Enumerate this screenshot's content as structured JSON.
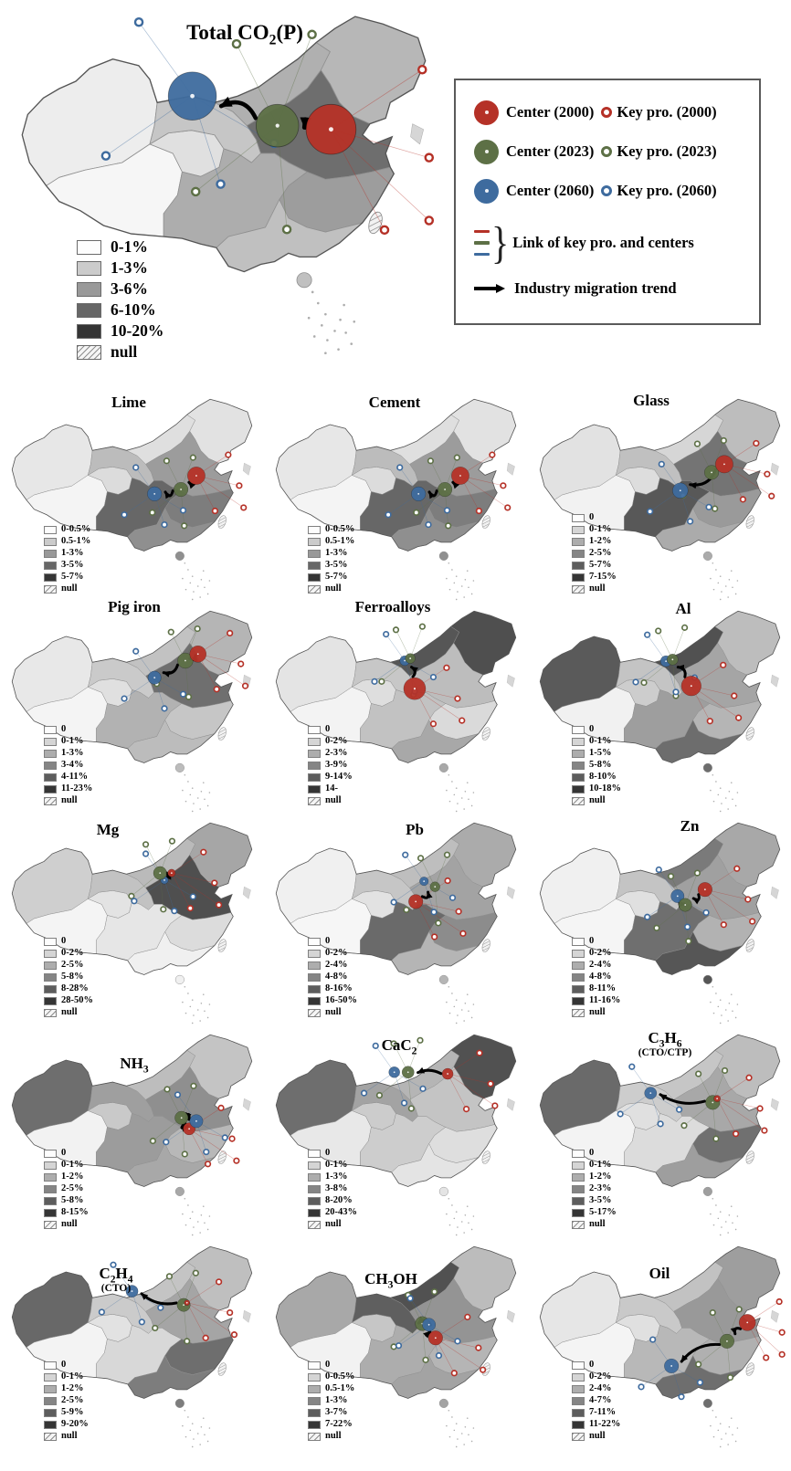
{
  "colors": {
    "red": "#b53127",
    "green": "#5d7046",
    "blue": "#3e6b9e"
  },
  "legend_box": {
    "rows": [
      {
        "center": "Center (2000)",
        "key": "Key pro. (2000)"
      },
      {
        "center": "Center (2023)",
        "key": "Key pro. (2023)"
      },
      {
        "center": "Center (2060)",
        "key": "Key pro. (2060)"
      }
    ],
    "link": "Link of key pro. and centers",
    "trend": "Industry migration trend"
  },
  "main": {
    "id": "total",
    "title": [
      [
        "t",
        "Total CO"
      ],
      [
        "s",
        "2"
      ],
      [
        "t",
        "(P)"
      ]
    ],
    "legend": [
      "0-1%",
      "1-3%",
      "3-6%",
      "6-10%",
      "10-20%",
      "null"
    ],
    "fills": {
      "r1": "#ededed",
      "r2": "#f6f6f6",
      "r3": "#e0e0e0",
      "r4": "#c6c6c6",
      "r5": "#b0b0b0",
      "r6": "#b7b7b7",
      "r7": "#6e6e6e",
      "r8": "#9d9d9d",
      "r9": "#c0c0c0",
      "r10": "#adadad"
    },
    "centers": {
      "red": [
        356,
        124,
        27
      ],
      "green": [
        298,
        120,
        23
      ],
      "blue": [
        206,
        88,
        26
      ]
    },
    "arrows": [
      {
        "f": "red",
        "t": "green",
        "b": 18
      },
      {
        "f": "green",
        "t": "blue",
        "b": 20
      }
    ]
  },
  "maps": [
    {
      "id": "lime",
      "title": [
        [
          "t",
          "Lime"
        ]
      ],
      "legend": [
        "0-0.5%",
        "0.5-1%",
        "1-3%",
        "3-5%",
        "5-7%",
        "null"
      ],
      "fills": {
        "r1": "#e7e7e7",
        "r2": "#f4f4f4",
        "r3": "#dcdcdc",
        "r4": "#bcbcbc",
        "r5": "#dfdfdf",
        "r6": "#e2e2e2",
        "r7": "#9c9c9c",
        "r8": "#7d7d7d",
        "r9": "#8f8f8f",
        "r10": "#676767"
      },
      "centers": {
        "red": [
          357,
          141,
          16
        ],
        "green": [
          329,
          166,
          13
        ],
        "blue": [
          281,
          174,
          13
        ]
      },
      "arrows": [
        {
          "f": "red",
          "t": "green",
          "b": -16
        },
        {
          "f": "green",
          "t": "blue",
          "b": -16
        }
      ]
    },
    {
      "id": "cement",
      "title": [
        [
          "t",
          "Cement"
        ]
      ],
      "legend": [
        "0-0.5%",
        "0.5-1%",
        "1-3%",
        "3-5%",
        "5-7%",
        "null"
      ],
      "fills": {
        "r1": "#e7e7e7",
        "r2": "#f4f4f4",
        "r3": "#dcdcdc",
        "r4": "#bcbcbc",
        "r5": "#dfdfdf",
        "r6": "#e2e2e2",
        "r7": "#9c9c9c",
        "r8": "#7d7d7d",
        "r9": "#8f8f8f",
        "r10": "#676767"
      },
      "centers": {
        "red": [
          357,
          141,
          16
        ],
        "green": [
          329,
          166,
          13
        ],
        "blue": [
          281,
          174,
          13
        ]
      },
      "arrows": [
        {
          "f": "red",
          "t": "green",
          "b": -16
        },
        {
          "f": "green",
          "t": "blue",
          "b": -16
        }
      ]
    },
    {
      "id": "glass",
      "title": [
        [
          "t",
          "Glass"
        ]
      ],
      "legend": [
        "0",
        "0-1%",
        "1-2%",
        "2-5%",
        "5-7%",
        "7-15%",
        "null"
      ],
      "fills": {
        "r1": "#e2e2e2",
        "r2": "#f2f2f2",
        "r3": "#dddddd",
        "r4": "#c0c0c0",
        "r5": "#d6d6d6",
        "r6": "#bdbdbd",
        "r7": "#747474",
        "r8": "#9a9a9a",
        "r9": "#ababab",
        "r10": "#585858"
      },
      "centers": {
        "red": [
          357,
          120,
          16
        ],
        "green": [
          334,
          135,
          13
        ],
        "blue": [
          277,
          168,
          14
        ]
      },
      "arrows": [
        {
          "f": "red",
          "t": "blue",
          "b": -22
        }
      ]
    },
    {
      "id": "pig",
      "title": [
        [
          "t",
          "Pig iron"
        ]
      ],
      "legend": [
        "0",
        "0-1%",
        "1-3%",
        "3-4%",
        "4-11%",
        "11-23%",
        "null"
      ],
      "fills": {
        "r1": "#e8e8e8",
        "r2": "#f4f4f4",
        "r3": "#e0e0e0",
        "r4": "#cacaca",
        "r5": "#c2c2c2",
        "r6": "#b5b5b5",
        "r7": "#6f6f6f",
        "r8": "#c6c6c6",
        "r9": "#bcbcbc",
        "r10": "#b2b2b2"
      },
      "centers": {
        "red": [
          360,
          80,
          15
        ],
        "green": [
          337,
          92,
          14
        ],
        "blue": [
          281,
          123,
          12
        ]
      },
      "arrows": [
        {
          "f": "red",
          "t": "green",
          "b": -8
        },
        {
          "f": "green",
          "t": "blue",
          "b": -14
        }
      ]
    },
    {
      "id": "ferro",
      "title": [
        [
          "t",
          "Ferroalloys"
        ]
      ],
      "legend": [
        "0",
        "0-2%",
        "2-3%",
        "3-9%",
        "9-14%",
        "14-",
        "null"
      ],
      "fills": {
        "r1": "#e4e4e4",
        "r2": "#f3f3f3",
        "r3": "#dedede",
        "r4": "#c7c7c7",
        "r5": "#565656",
        "r6": "#4f4f4f",
        "r7": "#bdbdbd",
        "r8": "#dadada",
        "r9": "#a8a8a8",
        "r10": "#c2c2c2"
      },
      "centers": {
        "red": [
          274,
          143,
          20
        ],
        "green": [
          266,
          88,
          9
        ],
        "blue": [
          256,
          92,
          9
        ]
      },
      "arrows": [
        {
          "f": "red",
          "t": "green",
          "b": 10
        }
      ]
    },
    {
      "id": "al",
      "title": [
        [
          "t",
          "Al"
        ]
      ],
      "legend": [
        "0",
        "0-1%",
        "1-5%",
        "5-8%",
        "8-10%",
        "10-18%",
        "null"
      ],
      "fills": {
        "r1": "#5a5a5a",
        "r2": "#f1f1f1",
        "r3": "#cdcdcd",
        "r4": "#c4c4c4",
        "r5": "#515151",
        "r6": "#bdbdbd",
        "r7": "#a5a5a5",
        "r8": "#b5b5b5",
        "r9": "#6d6d6d",
        "r10": "#9e9e9e"
      },
      "centers": {
        "red": [
          297,
          138,
          18
        ],
        "green": [
          263,
          90,
          10
        ],
        "blue": [
          251,
          93,
          10
        ]
      },
      "arrows": [
        {
          "f": "red",
          "t": "green",
          "b": 12
        }
      ]
    },
    {
      "id": "mg",
      "title": [
        [
          "t",
          "Mg"
        ]
      ],
      "legend": [
        "0",
        "0-2%",
        "2-5%",
        "5-8%",
        "8-28%",
        "28-50%",
        "null"
      ],
      "fills": {
        "r1": "#cfcfcf",
        "r2": "#f4f4f4",
        "r3": "#e3e3e3",
        "r4": "#c2c2c2",
        "r5": "#bababa",
        "r6": "#a6a6a6",
        "r7": "#4f4f4f",
        "r8": "#dcdcdc",
        "r9": "#f0f0f0",
        "r10": "#e6e6e6"
      },
      "centers": {
        "red": [
          312,
          93,
          7
        ],
        "green": [
          291,
          93,
          12
        ],
        "blue": [
          299,
          106,
          7
        ]
      },
      "arrows": [
        {
          "f": "red",
          "t": "green",
          "b": -8
        }
      ]
    },
    {
      "id": "pb",
      "title": [
        [
          "t",
          "Pb"
        ]
      ],
      "legend": [
        "0",
        "0-2%",
        "2-4%",
        "4-8%",
        "8-16%",
        "16-50%",
        "null"
      ],
      "fills": {
        "r1": "#f0f0f0",
        "r2": "#f6f6f6",
        "r3": "#e2e2e2",
        "r4": "#c6c6c6",
        "r5": "#bebebe",
        "r6": "#ababab",
        "r7": "#a3a3a3",
        "r8": "#8c8c8c",
        "r9": "#b5b5b5",
        "r10": "#6a6a6a"
      },
      "centers": {
        "red": [
          276,
          145,
          13
        ],
        "green": [
          311,
          118,
          9
        ],
        "blue": [
          291,
          108,
          8
        ]
      },
      "arrows": [
        {
          "f": "red",
          "t": "green",
          "b": 14
        }
      ]
    },
    {
      "id": "zn",
      "title": [
        [
          "t",
          "Zn"
        ]
      ],
      "legend": [
        "0",
        "0-2%",
        "2-4%",
        "4-8%",
        "8-11%",
        "11-16%",
        "null"
      ],
      "fills": {
        "r1": "#f0f0f0",
        "r2": "#f5f5f5",
        "r3": "#e0e0e0",
        "r4": "#c4c4c4",
        "r5": "#7a7a7a",
        "r6": "#a8a8a8",
        "r7": "#a0a0a0",
        "r8": "#b2b2b2",
        "r9": "#565656",
        "r10": "#6f6f6f"
      },
      "centers": {
        "red": [
          322,
          123,
          13
        ],
        "green": [
          286,
          151,
          12
        ],
        "blue": [
          272,
          135,
          12
        ]
      },
      "arrows": [
        {
          "f": "red",
          "t": "green",
          "b": -14
        },
        {
          "f": "green",
          "t": "blue",
          "b": -8
        }
      ]
    },
    {
      "id": "nh3",
      "title": [
        [
          "t",
          "NH"
        ],
        [
          "s",
          "3"
        ]
      ],
      "legend": [
        "0",
        "0-1%",
        "1-2%",
        "2-5%",
        "5-8%",
        "8-15%",
        "null"
      ],
      "fills": {
        "r1": "#6e6e6e",
        "r2": "#f2f2f2",
        "r3": "#c9c9c9",
        "r4": "#9f9f9f",
        "r5": "#bdbdbd",
        "r6": "#c4c4c4",
        "r7": "#8f8f8f",
        "r8": "#b8b8b8",
        "r9": "#a8a8a8",
        "r10": "#9c9c9c"
      },
      "centers": {
        "red": [
          344,
          173,
          11
        ],
        "green": [
          330,
          153,
          12
        ],
        "blue": [
          357,
          159,
          12
        ]
      },
      "order": [
        "green",
        "red",
        "blue"
      ],
      "arrows": [
        {
          "f": "red",
          "t": "green",
          "b": -20
        },
        {
          "f": "green",
          "t": "blue",
          "b": -18
        }
      ]
    },
    {
      "id": "cac2",
      "title": [
        [
          "t",
          "CaC"
        ],
        [
          "s",
          "2"
        ]
      ],
      "legend": [
        "0",
        "0-1%",
        "1-3%",
        "3-8%",
        "8-20%",
        "20-43%",
        "null"
      ],
      "fills": {
        "r1": "#6e6e6e",
        "r2": "#e8e8e8",
        "r3": "#cccccc",
        "r4": "#a3a3a3",
        "r5": "#b5b5b5",
        "r6": "#515151",
        "r7": "#c4c4c4",
        "r8": "#dedede",
        "r9": "#e4e4e4",
        "r10": "#cdcdcd"
      },
      "centers": {
        "red": [
          334,
          73,
          10
        ],
        "green": [
          262,
          70,
          11
        ],
        "blue": [
          237,
          70,
          10
        ]
      },
      "arrows": [
        {
          "f": "red",
          "t": "green",
          "b": 10
        }
      ]
    },
    {
      "id": "c3h6",
      "title": [
        [
          "t",
          "C"
        ],
        [
          "s",
          "3"
        ],
        [
          "t",
          "H"
        ],
        [
          "s",
          "6"
        ]
      ],
      "subtitle": "(CTO/CTP)",
      "legend": [
        "0",
        "0-1%",
        "1-2%",
        "2-3%",
        "3-5%",
        "5-17%",
        "null"
      ],
      "fills": {
        "r1": "#6a6a6a",
        "r2": "#f3f3f3",
        "r3": "#e0e0e0",
        "r4": "#cdcdcd",
        "r5": "#c6c6c6",
        "r6": "#bdbdbd",
        "r7": "#a8a8a8",
        "r8": "#707070",
        "r9": "#9e9e9e",
        "r10": "#dcdcdc"
      },
      "centers": {
        "red": [
          344,
          118,
          6
        ],
        "green": [
          336,
          125,
          13
        ],
        "blue": [
          223,
          108,
          11
        ]
      },
      "arrows": [
        {
          "f": "green",
          "t": "blue",
          "b": -18
        }
      ]
    },
    {
      "id": "c2h4",
      "title": [
        [
          "t",
          "C"
        ],
        [
          "s",
          "2"
        ],
        [
          "t",
          "H"
        ],
        [
          "s",
          "4"
        ]
      ],
      "subtitle": "(CTO)",
      "legend": [
        "0",
        "0-1%",
        "1-2%",
        "2-5%",
        "5-9%",
        "9-20%",
        "null"
      ],
      "fills": {
        "r1": "#686868",
        "r2": "#f3f3f3",
        "r3": "#e2e2e2",
        "r4": "#cbcbcb",
        "r5": "#c4c4c4",
        "r6": "#bfbfbf",
        "r7": "#a5a5a5",
        "r8": "#6e6e6e",
        "r9": "#7d7d7d",
        "r10": "#d8d8d8"
      },
      "centers": {
        "red": [
          340,
          104,
          5
        ],
        "green": [
          334,
          108,
          12
        ],
        "blue": [
          240,
          83,
          11
        ]
      },
      "arrows": [
        {
          "f": "green",
          "t": "blue",
          "b": -16
        }
      ]
    },
    {
      "id": "ch3oh",
      "title": [
        [
          "t",
          "CH"
        ],
        [
          "s",
          "3"
        ],
        [
          "t",
          "OH"
        ]
      ],
      "legend": [
        "0",
        "0-0.5%",
        "0.5-1%",
        "1-3%",
        "3-7%",
        "7-22%",
        "null"
      ],
      "fills": {
        "r1": "#a8a8a8",
        "r2": "#f2f2f2",
        "r3": "#c6c6c6",
        "r4": "#5f5f5f",
        "r5": "#515151",
        "r6": "#bcbcbc",
        "r7": "#949494",
        "r8": "#b5b5b5",
        "r9": "#a3a3a3",
        "r10": "#adadad"
      },
      "centers": {
        "red": [
          312,
          168,
          13
        ],
        "green": [
          288,
          142,
          13
        ],
        "blue": [
          300,
          144,
          12
        ]
      },
      "order": [
        "green",
        "red",
        "blue"
      ],
      "arrows": [
        {
          "f": "red",
          "t": "green",
          "b": -18
        },
        {
          "f": "green",
          "t": "blue",
          "b": -16
        }
      ]
    },
    {
      "id": "oil",
      "title": [
        [
          "t",
          "Oil"
        ]
      ],
      "legend": [
        "0",
        "0-2%",
        "2-4%",
        "4-7%",
        "7-11%",
        "11-22%",
        "null"
      ],
      "fills": {
        "r1": "#e6e6e6",
        "r2": "#f4f4f4",
        "r3": "#e0e0e0",
        "r4": "#c9c9c9",
        "r5": "#c2c2c2",
        "r6": "#9e9e9e",
        "r7": "#999999",
        "r8": "#b0b0b0",
        "r9": "#6e6e6e",
        "r10": "#b8b8b8"
      },
      "centers": {
        "red": [
          399,
          140,
          15
        ],
        "green": [
          362,
          174,
          13
        ],
        "blue": [
          261,
          219,
          13
        ]
      },
      "arrows": [
        {
          "f": "red",
          "t": "green",
          "b": 12
        },
        {
          "f": "green",
          "t": "blue",
          "b": 20
        }
      ]
    }
  ]
}
